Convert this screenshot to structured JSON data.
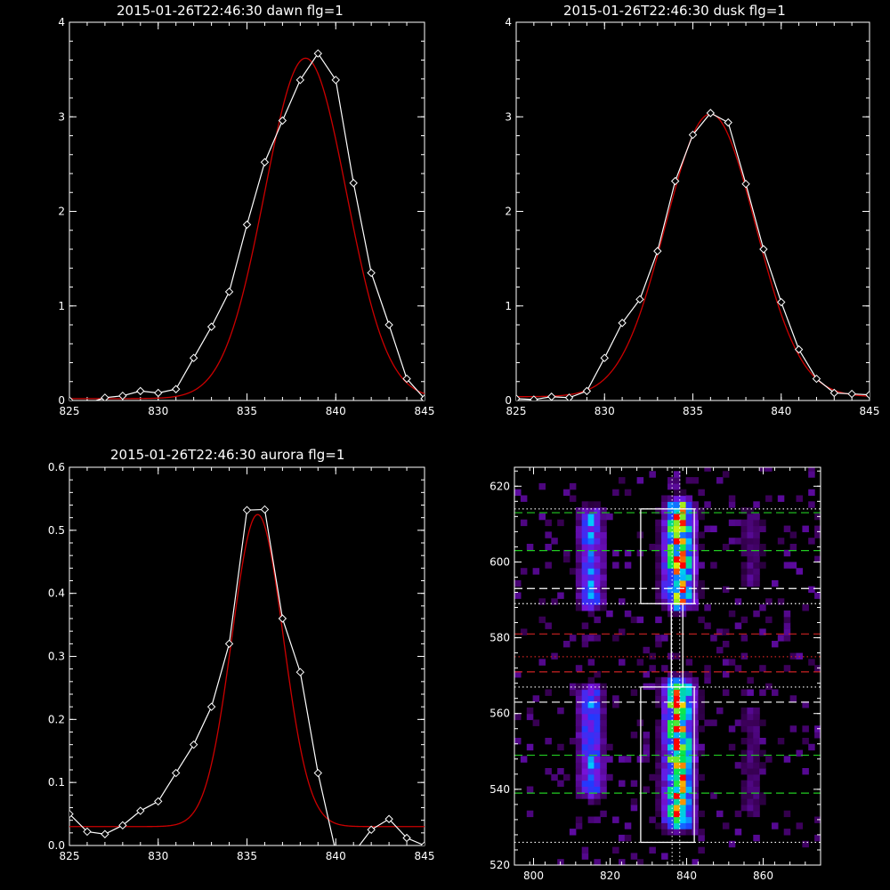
{
  "colors": {
    "background": "#000000",
    "axes": "#ffffff",
    "data_line": "#ffffff",
    "fit_line": "#cc0000",
    "green_dash": "#22cc22",
    "red_dash": "#cc2222",
    "white_dash": "#ffffff"
  },
  "chart_data": [
    {
      "type": "line",
      "title": "2015-01-26T22:46:30 dawn flg=1",
      "xlabel": "",
      "ylabel": "",
      "xlim": [
        825,
        845
      ],
      "ylim": [
        0,
        4
      ],
      "xticks": [
        "825",
        "830",
        "835",
        "840",
        "845"
      ],
      "yticks": [
        "0",
        "1",
        "2",
        "3",
        "4"
      ],
      "series": [
        {
          "role": "data",
          "markers": "diamond",
          "x": [
            825,
            826,
            827,
            828,
            829,
            830,
            831,
            832,
            833,
            834,
            835,
            836,
            837,
            838,
            839,
            840,
            841,
            842,
            843,
            844,
            845
          ],
          "y": [
            0.0,
            -0.03,
            0.03,
            0.05,
            0.1,
            0.08,
            0.12,
            0.45,
            0.78,
            1.15,
            1.86,
            2.52,
            2.96,
            3.39,
            3.67,
            3.39,
            2.3,
            1.35,
            0.8,
            0.23,
            0.02
          ]
        },
        {
          "role": "fit",
          "model": "gaussian",
          "amplitude": 3.6,
          "center": 838.3,
          "sigma": 2.3,
          "offset": 0.02
        }
      ]
    },
    {
      "type": "line",
      "title": "2015-01-26T22:46:30 dusk flg=1",
      "xlabel": "",
      "ylabel": "",
      "xlim": [
        825,
        845
      ],
      "ylim": [
        0,
        4
      ],
      "xticks": [
        "825",
        "830",
        "835",
        "840",
        "845"
      ],
      "yticks": [
        "0",
        "1",
        "2",
        "3",
        "4"
      ],
      "series": [
        {
          "role": "data",
          "markers": "diamond",
          "x": [
            825,
            826,
            827,
            828,
            829,
            830,
            831,
            832,
            833,
            834,
            835,
            836,
            837,
            838,
            839,
            840,
            841,
            842,
            843,
            844,
            845
          ],
          "y": [
            0.02,
            0.01,
            0.04,
            0.03,
            0.1,
            0.45,
            0.82,
            1.07,
            1.58,
            2.32,
            2.81,
            3.04,
            2.94,
            2.29,
            1.6,
            1.04,
            0.54,
            0.23,
            0.08,
            0.07,
            0.06
          ]
        },
        {
          "role": "fit",
          "model": "gaussian",
          "amplitude": 2.99,
          "center": 836.0,
          "sigma": 2.55,
          "offset": 0.04
        }
      ]
    },
    {
      "type": "line",
      "title": "2015-01-26T22:46:30 aurora flg=1",
      "xlabel": "",
      "ylabel": "",
      "xlim": [
        825,
        845
      ],
      "ylim": [
        0,
        0.6
      ],
      "xticks": [
        "825",
        "830",
        "835",
        "840",
        "845"
      ],
      "yticks": [
        "0.0",
        "0.1",
        "0.2",
        "0.3",
        "0.4",
        "0.5",
        "0.6"
      ],
      "series": [
        {
          "role": "data",
          "markers": "diamond",
          "x": [
            825,
            826,
            827,
            828,
            829,
            830,
            831,
            832,
            833,
            834,
            835,
            836,
            837,
            838,
            839,
            840,
            841,
            842,
            843,
            844,
            845
          ],
          "y": [
            0.05,
            0.022,
            0.018,
            0.032,
            0.055,
            0.07,
            0.115,
            0.16,
            0.22,
            0.32,
            0.532,
            0.533,
            0.36,
            0.275,
            0.115,
            -0.01,
            -0.012,
            0.025,
            0.042,
            0.012,
            0.0
          ]
        },
        {
          "role": "fit",
          "model": "gaussian",
          "amplitude": 0.495,
          "center": 835.6,
          "sigma": 1.45,
          "offset": 0.03
        }
      ]
    },
    {
      "type": "heatmap",
      "title": "",
      "xlabel": "",
      "ylabel": "",
      "xlim": [
        795,
        875
      ],
      "ylim": [
        520,
        625
      ],
      "xticks": [
        "800",
        "820",
        "840",
        "860"
      ],
      "yticks": [
        "520",
        "540",
        "560",
        "580",
        "600",
        "620"
      ],
      "colormap": "rainbow on black",
      "emission_columns": [
        {
          "x_center": 815,
          "width": 8,
          "segments": [
            [
              540,
              565
            ],
            [
              590,
              612
            ]
          ],
          "strength": 0.55
        },
        {
          "x_center": 838,
          "width": 9,
          "segments": [
            [
              532,
              567
            ],
            [
              590,
              614
            ]
          ],
          "strength": 1.0
        },
        {
          "x_center": 857,
          "width": 7,
          "segments": [
            [
              535,
              560
            ],
            [
              595,
              612
            ]
          ],
          "strength": 0.2
        }
      ],
      "boxes": [
        {
          "x": [
            828,
            842
          ],
          "y": [
            589,
            614
          ]
        },
        {
          "x": [
            828,
            842
          ],
          "y": [
            526,
            567
          ]
        },
        {
          "x": [
            836,
            839
          ],
          "y": [
            567,
            589
          ]
        }
      ],
      "vertical_lines": [
        {
          "x": 836.2,
          "style": "dotted",
          "color": "#ffffff"
        },
        {
          "x": 838.2,
          "style": "dotted",
          "color": "#ffffff"
        }
      ],
      "horizontal_lines": [
        {
          "y": 614,
          "style": "dotted",
          "color": "#ffffff"
        },
        {
          "y": 613,
          "style": "dashed",
          "color": "#22cc22"
        },
        {
          "y": 603,
          "style": "dashed",
          "color": "#22cc22"
        },
        {
          "y": 593,
          "style": "dashed",
          "color": "#ffffff"
        },
        {
          "y": 589,
          "style": "dotted",
          "color": "#ffffff"
        },
        {
          "y": 581,
          "style": "dashed",
          "color": "#cc2222"
        },
        {
          "y": 575,
          "style": "dotted",
          "color": "#cc2222"
        },
        {
          "y": 571,
          "style": "dashed",
          "color": "#cc2222"
        },
        {
          "y": 567,
          "style": "dotted",
          "color": "#ffffff"
        },
        {
          "y": 563,
          "style": "dashed",
          "color": "#ffffff"
        },
        {
          "y": 549,
          "style": "dashed",
          "color": "#22cc22"
        },
        {
          "y": 539,
          "style": "dashed",
          "color": "#22cc22"
        },
        {
          "y": 526,
          "style": "dotted",
          "color": "#ffffff"
        }
      ]
    }
  ]
}
